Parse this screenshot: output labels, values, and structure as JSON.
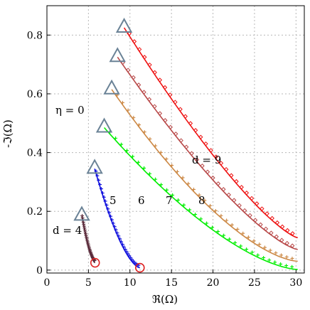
{
  "chart_data": {
    "type": "line",
    "xlabel": "ℜ(Ω)",
    "ylabel": "-ℑ(Ω)",
    "xlim": [
      0,
      31
    ],
    "ylim": [
      -0.01,
      0.9
    ],
    "xticks": [
      "0",
      "5",
      "10",
      "15",
      "20",
      "25",
      "30"
    ],
    "yticks": [
      "0",
      "0.2",
      "0.4",
      "0.6",
      "0.8"
    ],
    "grid": true,
    "annotations": {
      "eta": "η = 0",
      "d4": "d = 4",
      "d9": "d = 9",
      "n5": "5",
      "n6": "6",
      "n7": "7",
      "n8": "8"
    },
    "series": [
      {
        "name": "d = 4",
        "color": "#5a2a3a",
        "start": [
          4.2,
          0.185
        ],
        "end": [
          5.8,
          0.025
        ],
        "end_marker": "circle",
        "end_marker_color": "#dd2222",
        "alpha": 1.6,
        "marker": "plus"
      },
      {
        "name": "5",
        "color": "#1010dd",
        "start": [
          5.75,
          0.345
        ],
        "end": [
          11.2,
          0.008
        ],
        "end_marker": "circle",
        "end_marker_color": "#dd2222",
        "alpha": 1.6,
        "marker": "plus"
      },
      {
        "name": "6",
        "color": "#00ee00",
        "start": [
          6.9,
          0.485
        ],
        "end": [
          30.2,
          0.002
        ],
        "end_marker": "none",
        "alpha": 1.55,
        "marker": "plus"
      },
      {
        "name": "7",
        "color": "#cc8844",
        "start": [
          7.8,
          0.615
        ],
        "end": [
          30.2,
          0.03
        ],
        "end_marker": "none",
        "alpha": 1.55,
        "marker": "plus"
      },
      {
        "name": "8",
        "color": "#b84848",
        "start": [
          8.5,
          0.725
        ],
        "end": [
          30.2,
          0.07
        ],
        "end_marker": "none",
        "alpha": 1.35,
        "marker": "diamond"
      },
      {
        "name": "d = 9",
        "color": "#ee1111",
        "start": [
          9.3,
          0.825
        ],
        "end": [
          30.2,
          0.11
        ],
        "end_marker": "none",
        "alpha": 1.3,
        "marker": "diamond"
      }
    ],
    "start_marker": {
      "shape": "triangle",
      "color": "#6a8296"
    }
  }
}
